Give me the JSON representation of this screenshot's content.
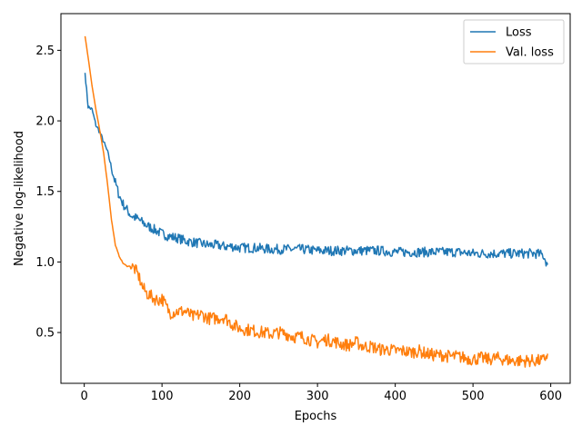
{
  "chart_data": {
    "type": "line",
    "xlabel": "Epochs",
    "ylabel": "Negative log-likelihood",
    "xlim": [
      -30,
      625
    ],
    "ylim": [
      0.14,
      2.76
    ],
    "xticks": [
      0,
      100,
      200,
      300,
      400,
      500,
      600
    ],
    "yticks": [
      0.5,
      1.0,
      1.5,
      2.0,
      2.5
    ],
    "xtick_labels": [
      "0",
      "100",
      "200",
      "300",
      "400",
      "500",
      "600"
    ],
    "ytick_labels": [
      "0.5",
      "1.0",
      "1.5",
      "2.0",
      "2.5"
    ],
    "grid": false,
    "legend_position": "top-right",
    "series": [
      {
        "name": "Loss",
        "color": "#1f77b4",
        "x": [
          1,
          5,
          10,
          15,
          20,
          25,
          30,
          35,
          40,
          45,
          50,
          55,
          60,
          70,
          80,
          90,
          100,
          110,
          120,
          130,
          140,
          150,
          160,
          170,
          180,
          190,
          200,
          220,
          240,
          260,
          280,
          300,
          320,
          340,
          360,
          380,
          400,
          420,
          440,
          460,
          480,
          500,
          520,
          540,
          560,
          580,
          590,
          596
        ],
        "y": [
          2.34,
          2.1,
          2.08,
          1.97,
          1.92,
          1.85,
          1.78,
          1.67,
          1.56,
          1.47,
          1.41,
          1.37,
          1.33,
          1.3,
          1.26,
          1.23,
          1.2,
          1.18,
          1.17,
          1.15,
          1.14,
          1.13,
          1.12,
          1.12,
          1.11,
          1.11,
          1.1,
          1.1,
          1.09,
          1.09,
          1.09,
          1.08,
          1.08,
          1.08,
          1.08,
          1.08,
          1.07,
          1.07,
          1.07,
          1.07,
          1.07,
          1.06,
          1.06,
          1.06,
          1.06,
          1.06,
          1.05,
          0.98
        ]
      },
      {
        "name": "Val. loss",
        "color": "#ff7f0e",
        "x": [
          1,
          5,
          10,
          15,
          20,
          25,
          30,
          35,
          40,
          45,
          50,
          55,
          60,
          65,
          70,
          75,
          80,
          85,
          90,
          95,
          100,
          110,
          120,
          130,
          140,
          150,
          160,
          170,
          180,
          190,
          200,
          210,
          220,
          230,
          240,
          250,
          260,
          270,
          280,
          290,
          300,
          310,
          320,
          330,
          340,
          350,
          360,
          370,
          380,
          390,
          400,
          410,
          420,
          430,
          440,
          450,
          460,
          470,
          480,
          490,
          500,
          510,
          520,
          530,
          540,
          550,
          560,
          570,
          580,
          590,
          596
        ],
        "y": [
          2.6,
          2.45,
          2.25,
          2.08,
          1.93,
          1.77,
          1.55,
          1.3,
          1.12,
          1.04,
          0.99,
          0.97,
          0.97,
          0.95,
          0.9,
          0.82,
          0.78,
          0.76,
          0.74,
          0.73,
          0.74,
          0.64,
          0.65,
          0.65,
          0.61,
          0.63,
          0.6,
          0.6,
          0.61,
          0.56,
          0.53,
          0.52,
          0.51,
          0.5,
          0.49,
          0.5,
          0.49,
          0.47,
          0.47,
          0.45,
          0.43,
          0.45,
          0.44,
          0.42,
          0.41,
          0.43,
          0.4,
          0.4,
          0.38,
          0.38,
          0.37,
          0.37,
          0.36,
          0.37,
          0.35,
          0.34,
          0.34,
          0.33,
          0.33,
          0.32,
          0.31,
          0.32,
          0.31,
          0.32,
          0.31,
          0.3,
          0.3,
          0.3,
          0.3,
          0.3,
          0.35
        ]
      }
    ]
  }
}
